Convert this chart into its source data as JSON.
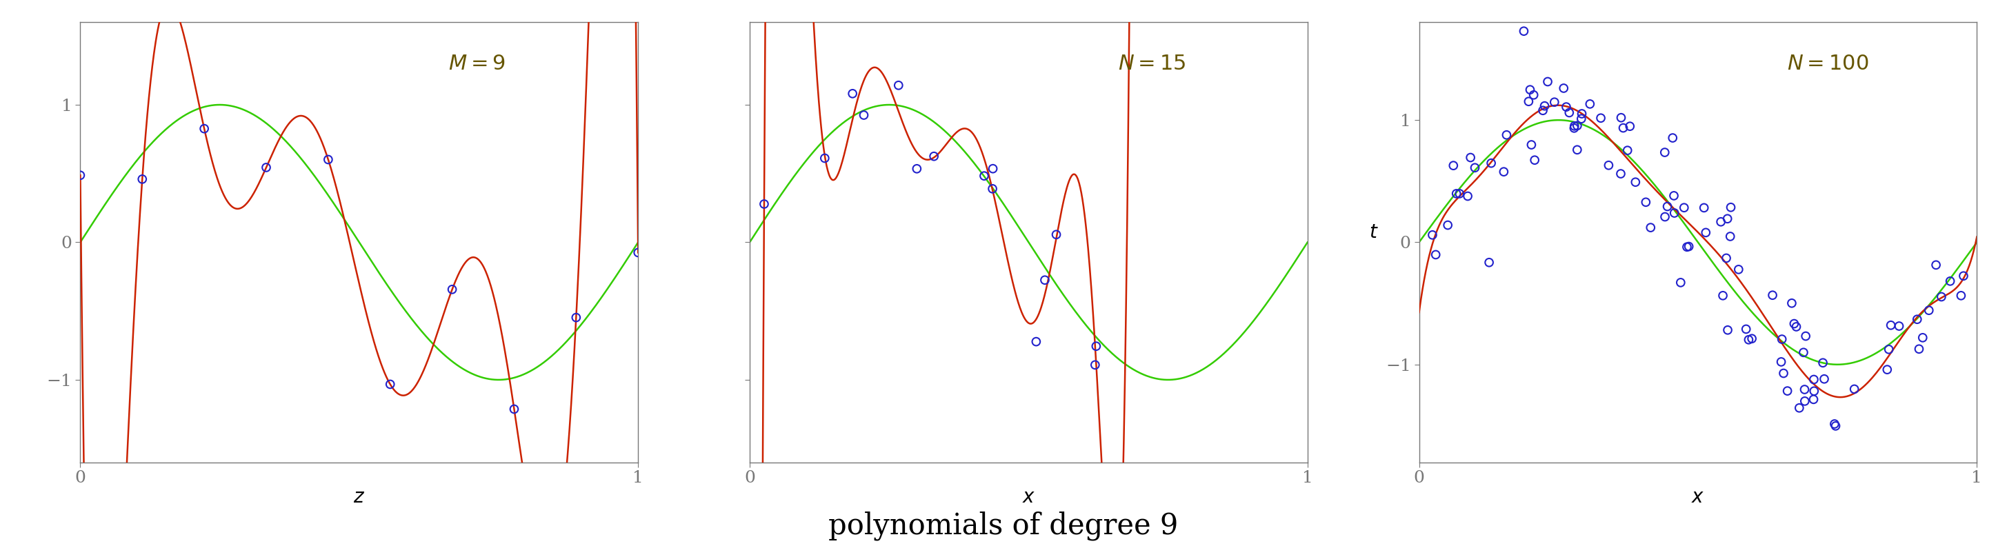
{
  "title": "polynomials of degree 9",
  "title_fontsize": 30,
  "sine_color": "#33cc00",
  "poly_color": "#cc2200",
  "scatter_facecolor": "none",
  "scatter_edgecolor": "#2222cc",
  "scatter_size": 70,
  "scatter_linewidth": 1.5,
  "line_width": 1.8,
  "degree": 9,
  "noise_std": 0.3,
  "seed1": 1,
  "seed2": 2,
  "seed3": 3,
  "N1": 10,
  "N2": 15,
  "N3": 100,
  "background_color": "#ffffff",
  "label_color": "#665500",
  "axes_color": "#777777"
}
